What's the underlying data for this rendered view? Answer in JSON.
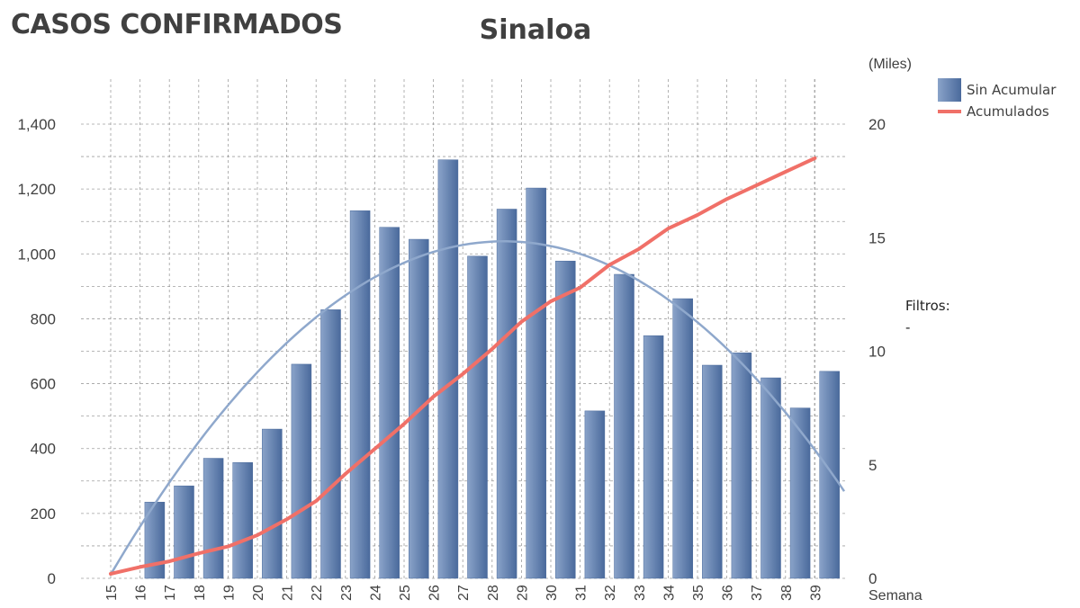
{
  "header": {
    "title": "CASOS CONFIRMADOS",
    "subtitle": "Sinaloa"
  },
  "legend": {
    "bar_label": "Sin Acumular",
    "line_label": "Acumulados"
  },
  "filters": {
    "label": "Filtros:",
    "value": "-"
  },
  "colors": {
    "bars": "#5a7aaa",
    "cumulative_line": "#f07068",
    "trend_curve": "#8fa8cc",
    "grid": "#888888",
    "text": "#404040"
  },
  "chart_data": {
    "type": "bar",
    "xlabel": "Semana",
    "ylabel": "",
    "y2label": "(Miles)",
    "categories": [
      "15",
      "16",
      "17",
      "18",
      "19",
      "20",
      "21",
      "22",
      "23",
      "24",
      "25",
      "26",
      "27",
      "28",
      "29",
      "30",
      "31",
      "32",
      "33",
      "34",
      "35",
      "36",
      "37",
      "38",
      "39"
    ],
    "ylim": [
      0,
      1400
    ],
    "y_ticks": [
      0,
      200,
      400,
      600,
      800,
      1000,
      1200,
      1400
    ],
    "y_tick_labels": [
      "0",
      "200",
      "400",
      "600",
      "800",
      "1,000",
      "1,200",
      "1,400"
    ],
    "y2lim": [
      0,
      20
    ],
    "y2_ticks": [
      0,
      5,
      10,
      15,
      20
    ],
    "y2_tick_labels": [
      "0",
      "5",
      "10",
      "15",
      "20"
    ],
    "grid": true,
    "legend_position": "top-right",
    "series": [
      {
        "name": "Sin Acumular",
        "type": "bar",
        "axis": "left",
        "values": [
          0,
          235,
          285,
          370,
          357,
          460,
          660,
          828,
          1133,
          1082,
          1045,
          1290,
          993,
          1138,
          1203,
          978,
          516,
          937,
          748,
          862,
          657,
          695,
          618,
          525,
          638
        ]
      },
      {
        "name": "Acumulados",
        "type": "line",
        "axis": "right",
        "values": [
          0.2,
          0.5,
          0.75,
          1.1,
          1.4,
          1.9,
          2.6,
          3.4,
          4.6,
          5.7,
          6.8,
          8.0,
          9.0,
          10.1,
          11.3,
          12.2,
          12.8,
          13.8,
          14.5,
          15.4,
          16.0,
          16.7,
          17.3,
          17.9,
          18.5
        ]
      }
    ]
  }
}
